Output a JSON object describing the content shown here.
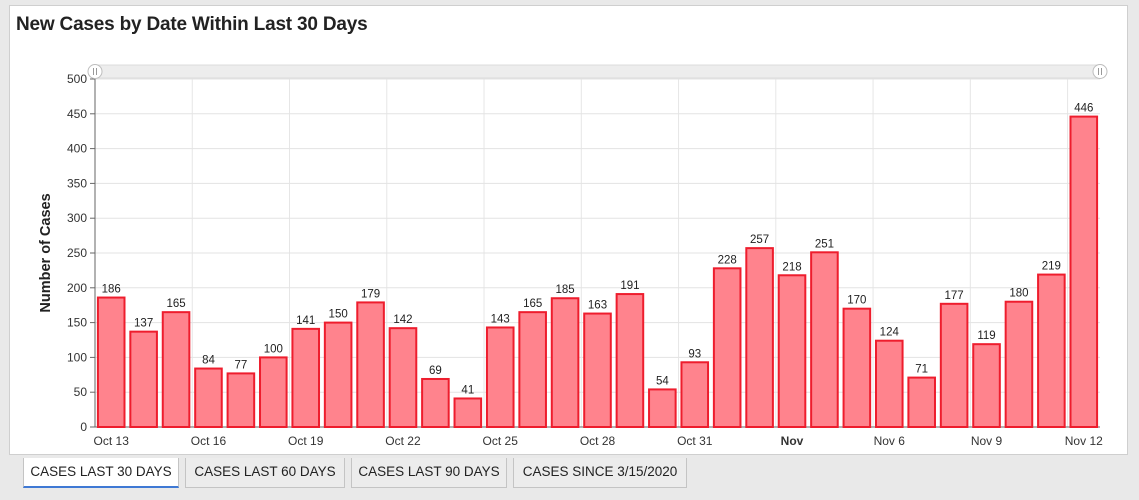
{
  "title": "New Cases by Date Within Last 30 Days",
  "tabs": [
    {
      "label": "CASES LAST 30 DAYS",
      "active": true
    },
    {
      "label": "CASES LAST 60 DAYS",
      "active": false
    },
    {
      "label": "CASES LAST 90 DAYS",
      "active": false
    },
    {
      "label": "CASES SINCE 3/15/2020",
      "active": false
    }
  ],
  "colors": {
    "bar_fill": "#ff838d",
    "bar_stroke": "#ee1d2d",
    "tab_accent": "#3f79d4"
  },
  "chart_data": {
    "type": "bar",
    "title": "New Cases by Date Within Last 30 Days",
    "ylabel": "Number of Cases",
    "xlabel": "",
    "ylim": [
      0,
      500
    ],
    "yticks": [
      0,
      50,
      100,
      150,
      200,
      250,
      300,
      350,
      400,
      450,
      500
    ],
    "grid": true,
    "categories": [
      "Oct 13",
      "Oct 14",
      "Oct 15",
      "Oct 16",
      "Oct 17",
      "Oct 18",
      "Oct 19",
      "Oct 20",
      "Oct 21",
      "Oct 22",
      "Oct 23",
      "Oct 24",
      "Oct 25",
      "Oct 26",
      "Oct 27",
      "Oct 28",
      "Oct 29",
      "Oct 30",
      "Oct 31",
      "Nov 1",
      "Nov 2",
      "Nov 3",
      "Nov 4",
      "Nov 5",
      "Nov 6",
      "Nov 7",
      "Nov 8",
      "Nov 9",
      "Nov 10",
      "Nov 11",
      "Nov 12"
    ],
    "values": [
      186,
      137,
      165,
      84,
      77,
      100,
      141,
      150,
      179,
      142,
      69,
      41,
      143,
      165,
      185,
      163,
      191,
      54,
      93,
      228,
      257,
      218,
      251,
      170,
      124,
      71,
      177,
      119,
      180,
      219,
      446
    ],
    "xtick_labels": [
      {
        "index": 0,
        "label": "Oct 13",
        "bold": false
      },
      {
        "index": 3,
        "label": "Oct 16",
        "bold": false
      },
      {
        "index": 6,
        "label": "Oct 19",
        "bold": false
      },
      {
        "index": 9,
        "label": "Oct 22",
        "bold": false
      },
      {
        "index": 12,
        "label": "Oct 25",
        "bold": false
      },
      {
        "index": 15,
        "label": "Oct 28",
        "bold": false
      },
      {
        "index": 18,
        "label": "Oct 31",
        "bold": false
      },
      {
        "index": 21,
        "label": "Nov",
        "bold": true
      },
      {
        "index": 24,
        "label": "Nov 6",
        "bold": false
      },
      {
        "index": 27,
        "label": "Nov 9",
        "bold": false
      },
      {
        "index": 30,
        "label": "Nov 12",
        "bold": false
      }
    ],
    "data_labels": true,
    "scrollbar": true
  }
}
